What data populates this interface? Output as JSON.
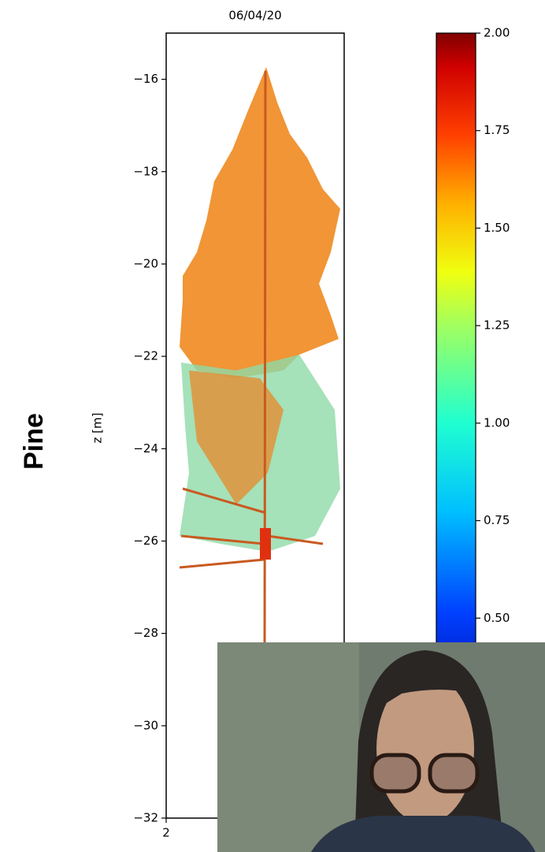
{
  "chart_data": {
    "type": "scatter",
    "title": "06/04/20",
    "ylabel": "z [m]",
    "ylim": [
      -32,
      -15
    ],
    "yticks": [
      {
        "value": -32,
        "label": "−32"
      },
      {
        "value": -30,
        "label": "−30"
      },
      {
        "value": -28,
        "label": "−28"
      },
      {
        "value": -26,
        "label": "−26"
      },
      {
        "value": -24,
        "label": "−24"
      },
      {
        "value": -22,
        "label": "−22"
      },
      {
        "value": -20,
        "label": "−20"
      },
      {
        "value": -18,
        "label": "−18"
      },
      {
        "value": -16,
        "label": "−16"
      }
    ],
    "xlim": [
      2,
      3
    ],
    "xticks": [
      2
    ],
    "colormap": "jet",
    "clim": [
      0.25,
      2.0
    ],
    "cticks": [
      {
        "value": 0.5,
        "label": "0.50"
      },
      {
        "value": 0.75,
        "label": "0.75"
      },
      {
        "value": 1.0,
        "label": "1.00"
      },
      {
        "value": 1.25,
        "label": "1.25"
      },
      {
        "value": 1.5,
        "label": "1.50"
      },
      {
        "value": 1.75,
        "label": "1.75"
      },
      {
        "value": 2.0,
        "label": "2.00"
      }
    ]
  },
  "row_label": "Pine"
}
